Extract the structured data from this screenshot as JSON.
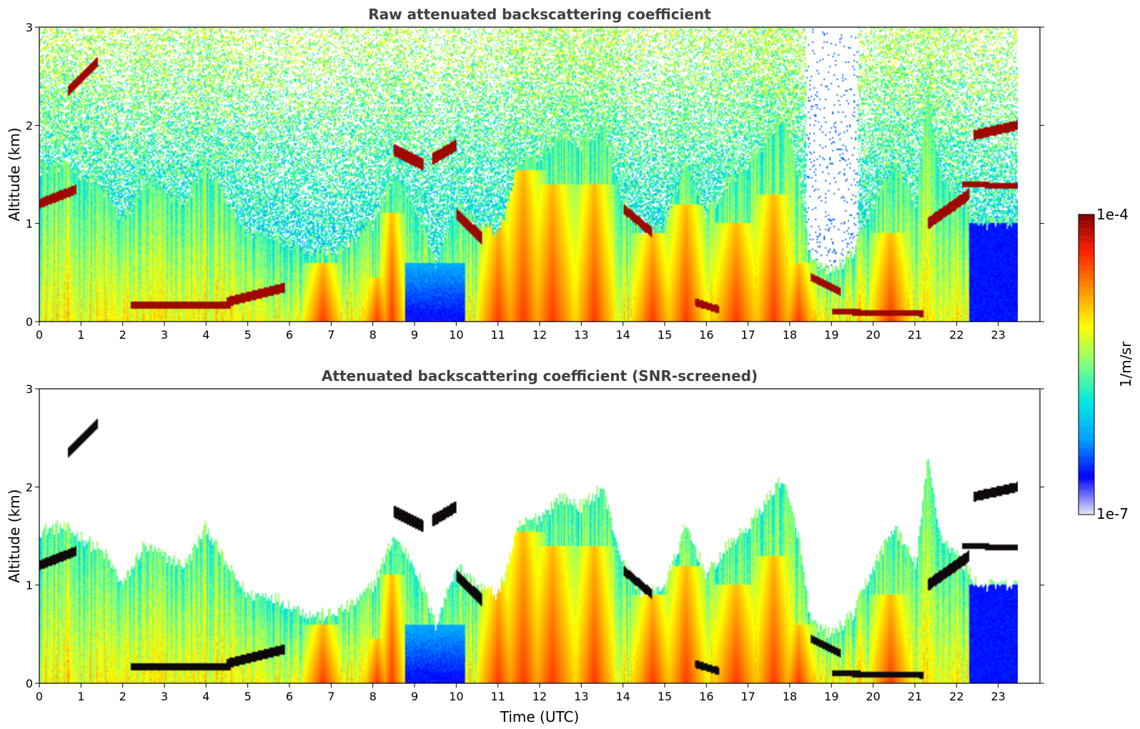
{
  "chart_data": [
    {
      "type": "heatmap",
      "title": "Raw attenuated backscattering coefficient",
      "ylabel": "Altitude (km)",
      "xlabel": "",
      "xlim": [
        0,
        24
      ],
      "ylim": [
        0,
        3
      ],
      "xticks": [
        "0",
        "1",
        "2",
        "3",
        "4",
        "5",
        "6",
        "7",
        "8",
        "9",
        "10",
        "11",
        "12",
        "13",
        "14",
        "15",
        "16",
        "17",
        "18",
        "19",
        "20",
        "21",
        "22",
        "23"
      ],
      "yticks": [
        "0",
        "1",
        "2",
        "3"
      ],
      "grid": false,
      "background": "#ffffff",
      "screened": false
    },
    {
      "type": "heatmap",
      "title": "Attenuated backscattering coefficient (SNR-screened)",
      "ylabel": "Altitude (km)",
      "xlabel": "Time (UTC)",
      "xlim": [
        0,
        24
      ],
      "ylim": [
        0,
        3
      ],
      "xticks": [
        "0",
        "1",
        "2",
        "3",
        "4",
        "5",
        "6",
        "7",
        "8",
        "9",
        "10",
        "11",
        "12",
        "13",
        "14",
        "15",
        "16",
        "17",
        "18",
        "19",
        "20",
        "21",
        "22",
        "23"
      ],
      "yticks": [
        "0",
        "1",
        "2",
        "3"
      ],
      "grid": false,
      "background": "#ffffff",
      "screened": true
    }
  ],
  "colorbar": {
    "label": "1/m/sr",
    "max_label": "1e-4",
    "min_label": "1e-7",
    "scale": "log",
    "colormap": "jet",
    "colors": [
      "#e8e8f8",
      "#0000ff",
      "#00a0ff",
      "#00e8e0",
      "#80ff80",
      "#ffff00",
      "#ff9000",
      "#ff2000",
      "#800000"
    ]
  },
  "data_extent_hours": 23.45,
  "features": {
    "boundary_layer_top_km": [
      [
        0,
        1.55
      ],
      [
        0.5,
        1.6
      ],
      [
        1,
        1.5
      ],
      [
        1.6,
        1.3
      ],
      [
        2,
        1.0
      ],
      [
        2.5,
        1.4
      ],
      [
        3,
        1.3
      ],
      [
        3.5,
        1.2
      ],
      [
        4,
        1.6
      ],
      [
        4.5,
        1.2
      ],
      [
        5,
        0.9
      ],
      [
        5.5,
        0.9
      ],
      [
        6,
        0.8
      ],
      [
        6.5,
        0.7
      ],
      [
        7,
        0.7
      ],
      [
        7.5,
        0.8
      ],
      [
        8,
        1.0
      ],
      [
        8.5,
        1.5
      ],
      [
        9,
        1.2
      ],
      [
        9.5,
        0.6
      ],
      [
        10,
        1.2
      ],
      [
        10.5,
        1.0
      ],
      [
        11,
        0.9
      ],
      [
        11.5,
        1.6
      ],
      [
        12,
        1.7
      ],
      [
        12.5,
        1.9
      ],
      [
        13,
        1.8
      ],
      [
        13.5,
        2.0
      ],
      [
        14,
        1.2
      ],
      [
        14.5,
        0.9
      ],
      [
        15,
        1.0
      ],
      [
        15.5,
        1.6
      ],
      [
        16,
        1.1
      ],
      [
        16.5,
        1.4
      ],
      [
        17,
        1.6
      ],
      [
        17.5,
        1.9
      ],
      [
        17.8,
        2.1
      ],
      [
        18.2,
        1.5
      ],
      [
        18.5,
        0.6
      ],
      [
        19,
        0.5
      ],
      [
        19.5,
        0.7
      ],
      [
        20,
        1.2
      ],
      [
        20.5,
        1.6
      ],
      [
        21,
        1.2
      ],
      [
        21.3,
        2.3
      ],
      [
        21.6,
        1.5
      ],
      [
        22,
        1.3
      ],
      [
        22.5,
        1.0
      ],
      [
        23.45,
        1.0
      ]
    ],
    "strong_layers": [
      {
        "t0": 0.0,
        "t1": 0.9,
        "h0": 1.2,
        "h1": 1.35,
        "th": 0.1
      },
      {
        "t0": 0.7,
        "t1": 1.4,
        "h0": 2.35,
        "h1": 2.65,
        "th": 0.1
      },
      {
        "t0": 2.2,
        "t1": 4.6,
        "h0": 0.17,
        "h1": 0.17,
        "th": 0.08
      },
      {
        "t0": 4.5,
        "t1": 5.9,
        "h0": 0.2,
        "h1": 0.35,
        "th": 0.1
      },
      {
        "t0": 8.5,
        "t1": 9.2,
        "h0": 1.75,
        "h1": 1.6,
        "th": 0.12
      },
      {
        "t0": 9.4,
        "t1": 10.0,
        "h0": 1.65,
        "h1": 1.8,
        "th": 0.12
      },
      {
        "t0": 10.0,
        "t1": 10.6,
        "h0": 1.1,
        "h1": 0.85,
        "th": 0.12
      },
      {
        "t0": 14.0,
        "t1": 14.7,
        "h0": 1.15,
        "h1": 0.9,
        "th": 0.1
      },
      {
        "t0": 15.7,
        "t1": 16.3,
        "h0": 0.2,
        "h1": 0.12,
        "th": 0.08
      },
      {
        "t0": 18.5,
        "t1": 19.2,
        "h0": 0.45,
        "h1": 0.3,
        "th": 0.08
      },
      {
        "t0": 19.0,
        "t1": 21.2,
        "h0": 0.1,
        "h1": 0.08,
        "th": 0.06
      },
      {
        "t0": 21.3,
        "t1": 22.3,
        "h0": 1.0,
        "h1": 1.3,
        "th": 0.12
      },
      {
        "t0": 22.1,
        "t1": 23.45,
        "h0": 1.4,
        "h1": 1.38,
        "th": 0.06
      },
      {
        "t0": 22.4,
        "t1": 23.45,
        "h0": 1.9,
        "h1": 2.0,
        "th": 0.1
      }
    ],
    "convective_plumes": [
      {
        "t": 6.8,
        "w": 0.45,
        "top": 0.6
      },
      {
        "t": 8.1,
        "w": 0.35,
        "top": 0.45
      },
      {
        "t": 8.45,
        "w": 0.3,
        "top": 1.1
      },
      {
        "t": 11.0,
        "w": 0.5,
        "top": 1.0
      },
      {
        "t": 11.6,
        "w": 0.55,
        "top": 1.55
      },
      {
        "t": 12.3,
        "w": 0.6,
        "top": 1.4
      },
      {
        "t": 13.3,
        "w": 0.5,
        "top": 1.4
      },
      {
        "t": 14.7,
        "w": 0.5,
        "top": 0.9
      },
      {
        "t": 15.5,
        "w": 0.5,
        "top": 1.2
      },
      {
        "t": 16.7,
        "w": 0.6,
        "top": 1.0
      },
      {
        "t": 17.6,
        "w": 0.5,
        "top": 1.3
      },
      {
        "t": 18.2,
        "w": 0.4,
        "top": 0.6
      },
      {
        "t": 20.4,
        "w": 0.5,
        "top": 0.9
      }
    ]
  }
}
